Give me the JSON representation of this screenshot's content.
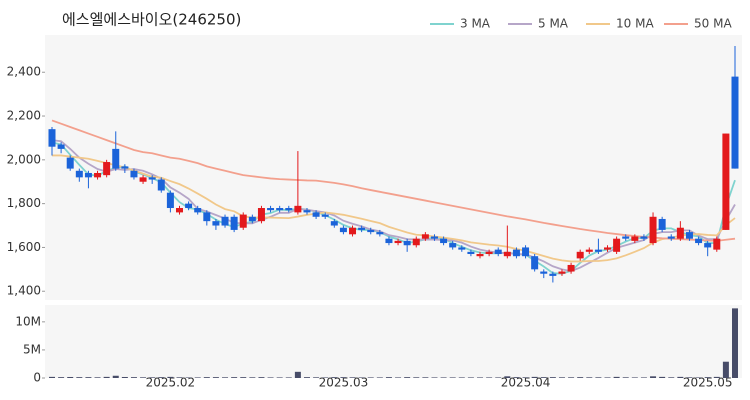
{
  "chart_data": {
    "type": "candlestick",
    "title": "에스엘에스바이오(246250)",
    "categories": [
      null,
      null,
      null,
      null,
      null,
      null,
      null,
      null,
      null,
      null,
      null,
      null,
      null,
      "2025.02",
      null,
      null,
      null,
      null,
      null,
      null,
      null,
      null,
      null,
      null,
      null,
      null,
      null,
      null,
      null,
      null,
      null,
      null,
      "2025.03",
      null,
      null,
      null,
      null,
      null,
      null,
      null,
      null,
      null,
      null,
      null,
      null,
      null,
      null,
      null,
      null,
      null,
      null,
      null,
      "2025.04",
      null,
      null,
      null,
      null,
      null,
      null,
      null,
      null,
      null,
      null,
      null,
      null,
      null,
      null,
      null,
      null,
      null,
      null,
      null,
      "2025.05",
      null,
      null,
      null
    ],
    "open": [
      2140,
      2070,
      2010,
      1950,
      1940,
      1920,
      1930,
      2050,
      1970,
      1950,
      1900,
      1920,
      1910,
      1850,
      1760,
      1800,
      1780,
      1760,
      1720,
      1740,
      1740,
      1690,
      1740,
      1720,
      1780,
      1780,
      1780,
      1760,
      1770,
      1760,
      1750,
      1720,
      1690,
      1660,
      1690,
      1680,
      1670,
      1640,
      1620,
      1630,
      1610,
      1640,
      1650,
      1640,
      1620,
      1600,
      1580,
      1560,
      1570,
      1590,
      1560,
      1590,
      1600,
      1560,
      1490,
      1480,
      1480,
      1490,
      1550,
      1580,
      1590,
      1590,
      1580,
      1650,
      1630,
      1650,
      1620,
      1730,
      1650,
      1640,
      1670,
      1640,
      1620,
      1590,
      1680,
      2380
    ],
    "high": [
      2150,
      2080,
      2020,
      1960,
      1950,
      1950,
      2000,
      2130,
      1980,
      1960,
      1930,
      1930,
      1920,
      1860,
      1790,
      1810,
      1790,
      1770,
      1730,
      1750,
      1750,
      1760,
      1750,
      1790,
      1790,
      1790,
      1790,
      2040,
      1780,
      1770,
      1760,
      1730,
      1700,
      1700,
      1700,
      1690,
      1680,
      1650,
      1640,
      1640,
      1650,
      1670,
      1660,
      1650,
      1630,
      1610,
      1590,
      1580,
      1590,
      1600,
      1700,
      1600,
      1610,
      1570,
      1500,
      1490,
      1500,
      1530,
      1590,
      1600,
      1640,
      1610,
      1650,
      1660,
      1660,
      1660,
      1760,
      1740,
      1660,
      1720,
      1680,
      1650,
      1630,
      1650,
      2120,
      2520
    ],
    "low": [
      2020,
      2030,
      1950,
      1900,
      1870,
      1910,
      1920,
      1950,
      1940,
      1910,
      1890,
      1890,
      1850,
      1760,
      1750,
      1770,
      1750,
      1700,
      1680,
      1690,
      1670,
      1680,
      1710,
      1710,
      1760,
      1760,
      1760,
      1750,
      1750,
      1730,
      1730,
      1690,
      1660,
      1650,
      1670,
      1660,
      1650,
      1610,
      1610,
      1580,
      1600,
      1630,
      1630,
      1610,
      1590,
      1580,
      1560,
      1550,
      1560,
      1560,
      1550,
      1550,
      1550,
      1490,
      1460,
      1440,
      1470,
      1480,
      1540,
      1570,
      1570,
      1580,
      1570,
      1630,
      1620,
      1630,
      1610,
      1670,
      1630,
      1630,
      1630,
      1610,
      1560,
      1580,
      1680,
      1960
    ],
    "close": [
      2060,
      2050,
      1960,
      1920,
      1920,
      1940,
      1990,
      1960,
      1960,
      1920,
      1920,
      1910,
      1860,
      1780,
      1780,
      1780,
      1760,
      1720,
      1700,
      1700,
      1680,
      1750,
      1720,
      1780,
      1770,
      1770,
      1770,
      1790,
      1760,
      1740,
      1740,
      1700,
      1670,
      1690,
      1680,
      1670,
      1660,
      1620,
      1630,
      1610,
      1640,
      1660,
      1640,
      1620,
      1600,
      1590,
      1570,
      1570,
      1580,
      1570,
      1580,
      1560,
      1560,
      1500,
      1480,
      1470,
      1490,
      1520,
      1580,
      1590,
      1580,
      1600,
      1640,
      1640,
      1650,
      1640,
      1740,
      1680,
      1640,
      1690,
      1640,
      1620,
      1600,
      1640,
      2120,
      1960
    ],
    "up_color": "#e3191c",
    "down_color": "#1b63d9",
    "ylim": [
      1360,
      2570
    ],
    "yticks": [
      {
        "value": 1400,
        "label": "1,400"
      },
      {
        "value": 1600,
        "label": "1,600"
      },
      {
        "value": 1800,
        "label": "1,800"
      },
      {
        "value": 2000,
        "label": "2,000"
      },
      {
        "value": 2200,
        "label": "2,200"
      },
      {
        "value": 2400,
        "label": "2,400"
      }
    ],
    "legend": "top-right",
    "series": [
      {
        "name": "3 MA",
        "color": "#7fd3cf",
        "values": [
          2080,
          2070,
          2023,
          1977,
          1933,
          1927,
          1950,
          1963,
          1970,
          1947,
          1933,
          1917,
          1897,
          1850,
          1807,
          1780,
          1773,
          1753,
          1727,
          1707,
          1693,
          1710,
          1717,
          1750,
          1757,
          1773,
          1770,
          1777,
          1773,
          1763,
          1747,
          1727,
          1703,
          1687,
          1680,
          1680,
          1670,
          1650,
          1637,
          1620,
          1627,
          1637,
          1647,
          1640,
          1620,
          1603,
          1587,
          1577,
          1573,
          1573,
          1577,
          1570,
          1567,
          1540,
          1513,
          1483,
          1480,
          1493,
          1530,
          1563,
          1583,
          1590,
          1607,
          1627,
          1643,
          1643,
          1677,
          1687,
          1687,
          1670,
          1657,
          1650,
          1620,
          1620,
          1787,
          1907
        ]
      },
      {
        "name": "5 MA",
        "color": "#b6a6c8",
        "values": [
          2090,
          2085,
          2050,
          2010,
          1982,
          1958,
          1946,
          1958,
          1954,
          1958,
          1950,
          1934,
          1914,
          1874,
          1850,
          1822,
          1776,
          1764,
          1748,
          1732,
          1712,
          1710,
          1710,
          1726,
          1740,
          1758,
          1758,
          1776,
          1772,
          1766,
          1760,
          1746,
          1722,
          1708,
          1696,
          1682,
          1674,
          1656,
          1648,
          1638,
          1636,
          1636,
          1636,
          1634,
          1632,
          1622,
          1604,
          1590,
          1582,
          1576,
          1574,
          1570,
          1568,
          1554,
          1536,
          1514,
          1500,
          1492,
          1508,
          1530,
          1552,
          1576,
          1598,
          1610,
          1622,
          1634,
          1662,
          1670,
          1670,
          1678,
          1678,
          1654,
          1638,
          1638,
          1724,
          1796
        ]
      },
      {
        "name": "10 MA",
        "color": "#f1c88a",
        "values": [
          2020,
          2020,
          2015,
          2010,
          2005,
          1995,
          1985,
          1975,
          1965,
          1951,
          1937,
          1923,
          1918,
          1903,
          1889,
          1869,
          1846,
          1822,
          1796,
          1775,
          1765,
          1742,
          1736,
          1737,
          1736,
          1735,
          1734,
          1741,
          1749,
          1754,
          1760,
          1755,
          1749,
          1740,
          1731,
          1721,
          1711,
          1694,
          1681,
          1668,
          1658,
          1655,
          1650,
          1645,
          1639,
          1632,
          1623,
          1618,
          1613,
          1609,
          1603,
          1593,
          1585,
          1573,
          1561,
          1549,
          1541,
          1536,
          1536,
          1538,
          1538,
          1542,
          1550,
          1564,
          1580,
          1597,
          1622,
          1638,
          1644,
          1654,
          1659,
          1661,
          1657,
          1655,
          1702,
          1734
        ]
      },
      {
        "name": "50 MA",
        "color": "#f3a08d",
        "values": [
          2180,
          2165,
          2150,
          2135,
          2120,
          2105,
          2090,
          2075,
          2060,
          2045,
          2035,
          2030,
          2020,
          2010,
          2005,
          1995,
          1985,
          1970,
          1960,
          1950,
          1940,
          1930,
          1925,
          1920,
          1915,
          1912,
          1910,
          1908,
          1906,
          1905,
          1900,
          1895,
          1888,
          1880,
          1870,
          1862,
          1854,
          1846,
          1838,
          1830,
          1822,
          1814,
          1806,
          1798,
          1790,
          1782,
          1774,
          1766,
          1758,
          1750,
          1742,
          1735,
          1728,
          1720,
          1712,
          1705,
          1698,
          1691,
          1684,
          1678,
          1672,
          1666,
          1661,
          1656,
          1652,
          1648,
          1645,
          1642,
          1640,
          1638,
          1636,
          1634,
          1632,
          1630,
          1635,
          1640
        ]
      }
    ],
    "volume": {
      "color": "#474c68",
      "ylim": [
        0,
        13000000
      ],
      "yticks": [
        0,
        {
          "value": 5000000,
          "label": "5M"
        },
        {
          "value": 10000000,
          "label": "10M"
        }
      ],
      "values": [
        200000,
        150000,
        180000,
        150000,
        150000,
        120000,
        200000,
        400000,
        180000,
        150000,
        120000,
        120000,
        150000,
        200000,
        120000,
        100000,
        100000,
        150000,
        150000,
        120000,
        150000,
        150000,
        120000,
        150000,
        100000,
        100000,
        100000,
        1100000,
        150000,
        120000,
        100000,
        150000,
        150000,
        120000,
        100000,
        100000,
        100000,
        150000,
        100000,
        150000,
        120000,
        120000,
        100000,
        100000,
        100000,
        100000,
        100000,
        100000,
        100000,
        100000,
        300000,
        150000,
        120000,
        200000,
        150000,
        150000,
        120000,
        120000,
        150000,
        120000,
        120000,
        100000,
        200000,
        120000,
        100000,
        100000,
        300000,
        200000,
        120000,
        200000,
        120000,
        100000,
        150000,
        200000,
        2900000,
        12400000
      ]
    }
  }
}
